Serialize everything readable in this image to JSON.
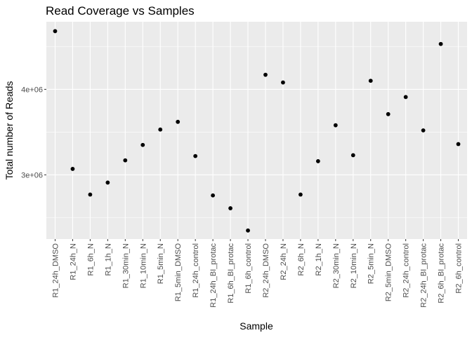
{
  "chart_data": {
    "type": "scatter",
    "title": "Read Coverage vs Samples",
    "xlabel": "Sample",
    "ylabel": "Total number of Reads",
    "categories": [
      "R1_24h_DMSO",
      "R1_24h_N",
      "R1_6h_N",
      "R1_1h_N",
      "R1_30min_N",
      "R1_10min_N",
      "R1_5min_N",
      "R1_5min_DMSO",
      "R1_24h_control",
      "R1_24h_BI_protac",
      "R1_6h_BI_protac",
      "R1_6h_control",
      "R2_24h_DMSO",
      "R2_24h_N",
      "R2_6h_N",
      "R2_1h_N",
      "R2_30min_N",
      "R2_10min_N",
      "R2_5min_N",
      "R2_5min_DMSO",
      "R2_24h_control",
      "R2_24h_BI_protac",
      "R2_6h_BI_protac",
      "R2_6h_control"
    ],
    "values": [
      4680000,
      3070000,
      2770000,
      2910000,
      3170000,
      3350000,
      3530000,
      3620000,
      3220000,
      2760000,
      2610000,
      2350000,
      4170000,
      4080000,
      2770000,
      3160000,
      3580000,
      3230000,
      4100000,
      3710000,
      3910000,
      3520000,
      4530000,
      3360000
    ],
    "ylim": [
      2250000,
      4790000
    ],
    "yticks": [
      3000000,
      4000000
    ],
    "ytick_labels": [
      "3e+06",
      "4e+06"
    ],
    "grid": true,
    "legend": "none",
    "colors": {
      "panel": "#ebebeb",
      "grid": "#ffffff",
      "point": "#000000"
    }
  }
}
